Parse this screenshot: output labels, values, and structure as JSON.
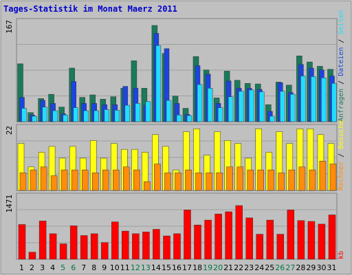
{
  "chart_data": {
    "type": "bar",
    "title": "Tages-Statistik im Monat Maerz 2011",
    "categories": [
      "1",
      "2",
      "3",
      "4",
      "5",
      "6",
      "7",
      "8",
      "9",
      "10",
      "11",
      "12",
      "13",
      "14",
      "15",
      "16",
      "17",
      "18",
      "19",
      "20",
      "21",
      "22",
      "23",
      "24",
      "25",
      "26",
      "27",
      "28",
      "29",
      "30",
      "31"
    ],
    "weekend_days": [
      "5",
      "6",
      "12",
      "13",
      "19",
      "20",
      "26",
      "27"
    ],
    "colors": {
      "background": "#c0c0c0",
      "frame": "#808080",
      "page": "#ffffff",
      "title": "#0000cc",
      "weekend_tick": "#007744",
      "weekday_tick": "#000000",
      "anfragen": "#1b7a5a",
      "dateien": "#1c44e0",
      "seiten": "#22ddff",
      "besuche": "#ffff11",
      "rechner": "#ff8c0a",
      "kb": "#ff0000"
    },
    "panels": [
      {
        "ymax": 167,
        "ylabel": "167",
        "side_labels": [
          {
            "text": "Anfragen",
            "color": "#1b7a5a"
          },
          {
            "text": "Dateien",
            "color": "#1c44e0"
          },
          {
            "text": "Seiten",
            "color": "#22ddff"
          }
        ],
        "series": [
          {
            "name": "Anfragen",
            "values": [
              95,
              15,
              38,
              45,
              24,
              88,
              40,
              44,
              37,
              41,
              55,
              100,
              55,
              158,
              112,
              42,
              22,
              107,
              85,
              39,
              83,
              68,
              63,
              62,
              28,
              65,
              60,
              108,
              98,
              91,
              86
            ]
          },
          {
            "name": "Dateien",
            "values": [
              40,
              11,
              35,
              30,
              13,
              66,
              30,
              30,
              28,
              28,
              58,
              55,
              27,
              145,
              120,
              30,
              12,
              92,
              78,
              30,
              67,
              55,
              55,
              53,
              17,
              64,
              48,
              94,
              88,
              85,
              75
            ]
          },
          {
            "name": "Seiten",
            "values": [
              22,
              9,
              24,
              18,
              11,
              23,
              18,
              18,
              20,
              19,
              27,
              30,
              33,
              125,
              35,
              11,
              10,
              61,
              55,
              23,
              41,
              50,
              52,
              49,
              9,
              50,
              45,
              75,
              74,
              72,
              63
            ]
          }
        ]
      },
      {
        "ymax": 22,
        "ylabel": "22",
        "side_labels": [
          {
            "text": "Rechner",
            "color": "#ff8c0a"
          },
          {
            "text": "Besuche",
            "color": "#ffff11"
          }
        ],
        "series": [
          {
            "name": "Besuche",
            "values": [
              16,
              8,
              13,
              15,
              11,
              15,
              11,
              17,
              11,
              16,
              14,
              14,
              13,
              19,
              15,
              7,
              20,
              21,
              12,
              20,
              17,
              16,
              11,
              21,
              13,
              20,
              16,
              21,
              21,
              19,
              16
            ]
          },
          {
            "name": "Rechner",
            "values": [
              6,
              7,
              8,
              5,
              7,
              7,
              7,
              6,
              7,
              7,
              8,
              7,
              3,
              9,
              6,
              6,
              7,
              6,
              6,
              6,
              8,
              8,
              7,
              7,
              7,
              6,
              7,
              8,
              7,
              10,
              9
            ]
          }
        ]
      },
      {
        "ymax": 1471,
        "ylabel": "1471",
        "side_labels": [
          {
            "text": "kb",
            "color": "#ff0000"
          }
        ],
        "series": [
          {
            "name": "kb",
            "values": [
              790,
              160,
              870,
              580,
              350,
              760,
              540,
              580,
              380,
              850,
              640,
              580,
              620,
              680,
              530,
              580,
              1120,
              780,
              890,
              1030,
              1080,
              1220,
              940,
              570,
              890,
              570,
              1120,
              880,
              860,
              800,
              1010
            ]
          }
        ]
      }
    ]
  }
}
